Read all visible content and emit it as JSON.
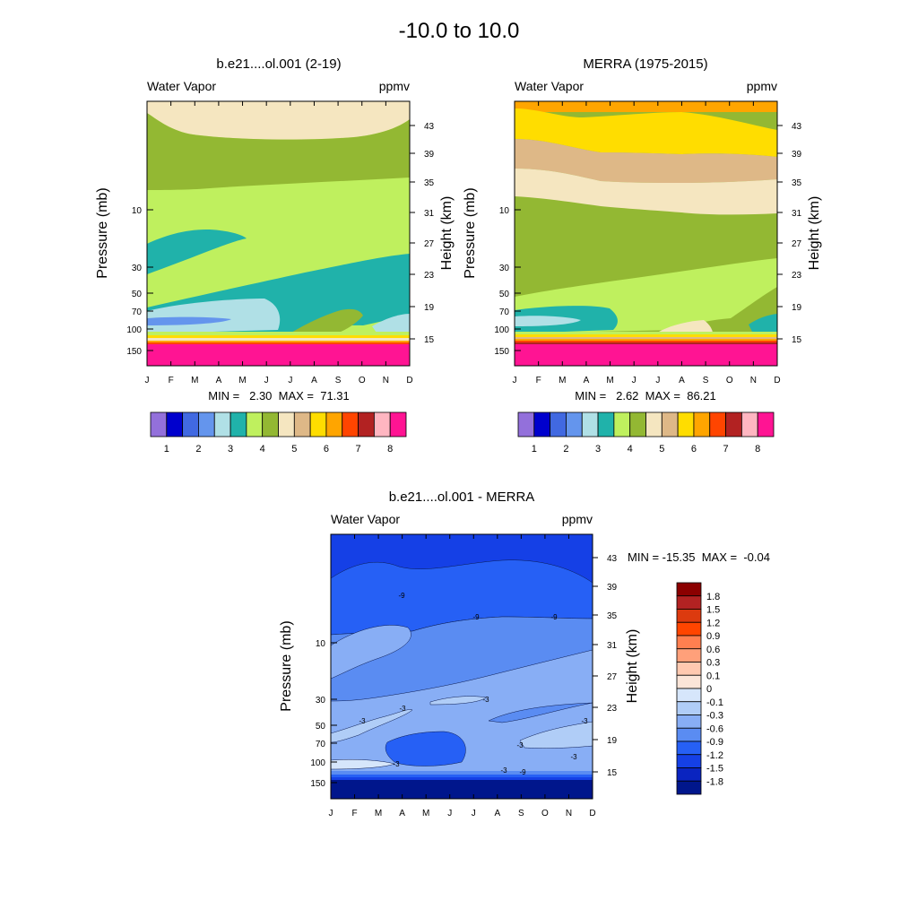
{
  "figure": {
    "title": "-10.0 to  10.0"
  },
  "chart_data": [
    {
      "type": "heatmap",
      "id": "model",
      "title": "b.e21....ol.001 (2-19)",
      "left_label": "Water Vapor",
      "right_label": "ppmv",
      "xlabel": "",
      "ylabel": "Pressure (mb)",
      "ylabel_right": "Height (km)",
      "x": [
        "J",
        "F",
        "M",
        "A",
        "M",
        "J",
        "J",
        "A",
        "S",
        "O",
        "N",
        "D"
      ],
      "y_pressure_ticks": [
        "10",
        "30",
        "50",
        "70",
        "100",
        "150"
      ],
      "y_height_ticks": [
        "43",
        "39",
        "35",
        "31",
        "27",
        "23",
        "19",
        "15"
      ],
      "stats": "MIN =   2.30  MAX =  71.31",
      "colorbar": {
        "colors": [
          "#9370db",
          "#0000cd",
          "#4169e1",
          "#6495ed",
          "#b0e0e6",
          "#20b2aa",
          "#bff05e",
          "#93b833",
          "#f5e6c0",
          "#deb887",
          "#ffdd00",
          "#ffa500",
          "#ff4500",
          "#b22222",
          "#ffb6c1",
          "#ff1493"
        ],
        "tick_labels": [
          "1",
          "2",
          "3",
          "4",
          "5",
          "6",
          "7",
          "8"
        ]
      }
    },
    {
      "type": "heatmap",
      "id": "merra",
      "title": "MERRA (1975-2015)",
      "left_label": "Water Vapor",
      "right_label": "ppmv",
      "xlabel": "",
      "ylabel": "Pressure (mb)",
      "ylabel_right": "Height (km)",
      "x": [
        "J",
        "F",
        "M",
        "A",
        "M",
        "J",
        "J",
        "A",
        "S",
        "O",
        "N",
        "D"
      ],
      "y_pressure_ticks": [
        "10",
        "30",
        "50",
        "70",
        "100",
        "150"
      ],
      "y_height_ticks": [
        "43",
        "39",
        "35",
        "31",
        "27",
        "23",
        "19",
        "15"
      ],
      "stats": "MIN =   2.62  MAX =  86.21",
      "colorbar": {
        "colors": [
          "#9370db",
          "#0000cd",
          "#4169e1",
          "#6495ed",
          "#b0e0e6",
          "#20b2aa",
          "#bff05e",
          "#93b833",
          "#f5e6c0",
          "#deb887",
          "#ffdd00",
          "#ffa500",
          "#ff4500",
          "#b22222",
          "#ffb6c1",
          "#ff1493"
        ],
        "tick_labels": [
          "1",
          "2",
          "3",
          "4",
          "5",
          "6",
          "7",
          "8"
        ]
      }
    },
    {
      "type": "heatmap",
      "id": "diff",
      "title": "b.e21....ol.001 - MERRA",
      "left_label": "Water Vapor",
      "right_label": "ppmv",
      "xlabel": "",
      "ylabel": "Pressure (mb)",
      "ylabel_right": "Height (km)",
      "x": [
        "J",
        "F",
        "M",
        "A",
        "M",
        "J",
        "J",
        "A",
        "S",
        "O",
        "N",
        "D"
      ],
      "y_pressure_ticks": [
        "10",
        "30",
        "50",
        "70",
        "100",
        "150"
      ],
      "y_height_ticks": [
        "43",
        "39",
        "35",
        "31",
        "27",
        "23",
        "19",
        "15"
      ],
      "stats": "MIN = -15.35  MAX =  -0.04",
      "contour_labels": [
        "-9",
        "-9",
        "-9",
        "-3",
        "-3",
        "-3",
        "-3",
        "-3",
        "-3",
        "-3",
        "-3",
        "-9"
      ],
      "colorbar": {
        "colors": [
          "#8b0000",
          "#b22222",
          "#dc3a0f",
          "#ff4500",
          "#ff7f50",
          "#ffa07a",
          "#ffc9b0",
          "#fbe5d8",
          "#d6e6fb",
          "#b0cdf7",
          "#88aef5",
          "#5a8cf2",
          "#2660f5",
          "#1540e6",
          "#0a24c0",
          "#00168c"
        ],
        "tick_labels": [
          "1.8",
          "1.5",
          "1.2",
          "0.9",
          "0.6",
          "0.3",
          "0.1",
          "0",
          "-0.1",
          "-0.3",
          "-0.6",
          "-0.9",
          "-1.2",
          "-1.5",
          "-1.8"
        ]
      }
    }
  ]
}
